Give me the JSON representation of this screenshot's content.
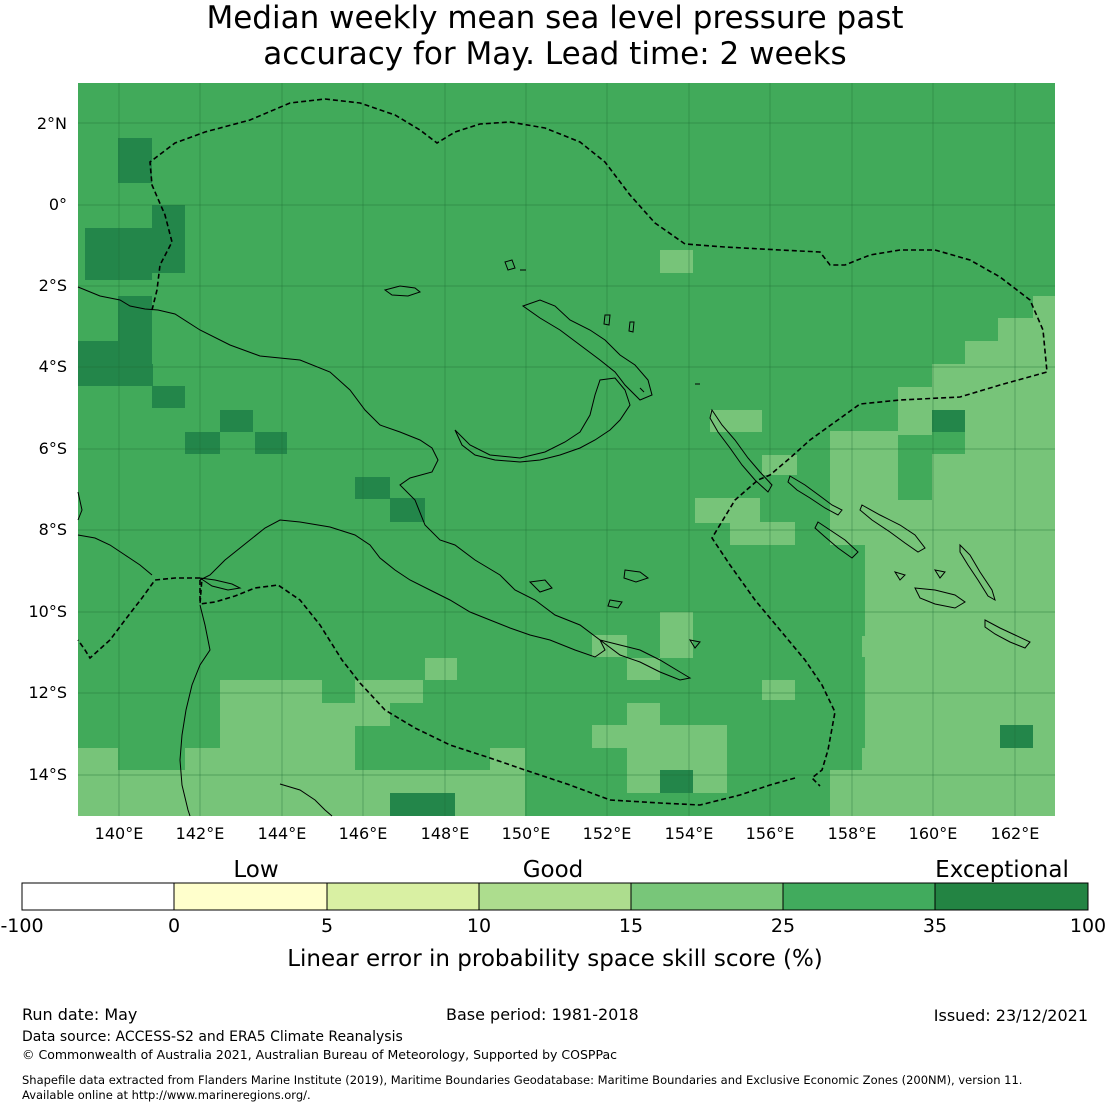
{
  "title": {
    "line1": "Median weekly mean sea level pressure past",
    "line2": "accuracy for May. Lead time: 2 weeks"
  },
  "map": {
    "lat_labels": [
      "2°N",
      "0°",
      "2°S",
      "4°S",
      "6°S",
      "8°S",
      "10°S",
      "12°S",
      "14°S"
    ],
    "lon_labels": [
      "140°E",
      "142°E",
      "144°E",
      "146°E",
      "148°E",
      "150°E",
      "152°E",
      "154°E",
      "156°E",
      "158°E",
      "160°E",
      "162°E"
    ],
    "background_category": "25-35",
    "colors": {
      "b15": "#77c479",
      "b25": "#41aa5a",
      "b35": "#23864a",
      "gridline": "#1f6b35",
      "coast": "#000000",
      "eez": "#000000"
    }
  },
  "legend": {
    "categories": [
      "Low",
      "Good",
      "Exceptional"
    ],
    "ticks": [
      "-100",
      "0",
      "5",
      "10",
      "15",
      "25",
      "35",
      "100"
    ],
    "bins": [
      {
        "range": "-100 to 0",
        "color": "#ffffff"
      },
      {
        "range": "0 to 5",
        "color": "#ffffcc"
      },
      {
        "range": "5 to 10",
        "color": "#d9f0a3"
      },
      {
        "range": "10 to 15",
        "color": "#addd8e"
      },
      {
        "range": "15 to 25",
        "color": "#78c679"
      },
      {
        "range": "25 to 35",
        "color": "#41ab5d"
      },
      {
        "range": "35 to 100",
        "color": "#238443"
      }
    ],
    "title": "Linear error in probability space skill score (%)"
  },
  "footer": {
    "run_date": "Run date: May",
    "base_period": "Base period: 1981-2018",
    "issued": "Issued: 23/12/2021",
    "data_source": "Data source: ACCESS-S2 and ERA5 Climate Reanalysis",
    "copyright": "© Commonwealth of Australia 2021, Australian Bureau of Meteorology, Supported by COSPPac",
    "shapefile_line1": "Shapefile data extracted from Flanders Marine Institute (2019), Maritime Boundaries Geodatabase: Maritime Boundaries and Exclusive Economic Zones (200NM), version 11.",
    "shapefile_line2": "Available online at http://www.marineregions.org/."
  }
}
